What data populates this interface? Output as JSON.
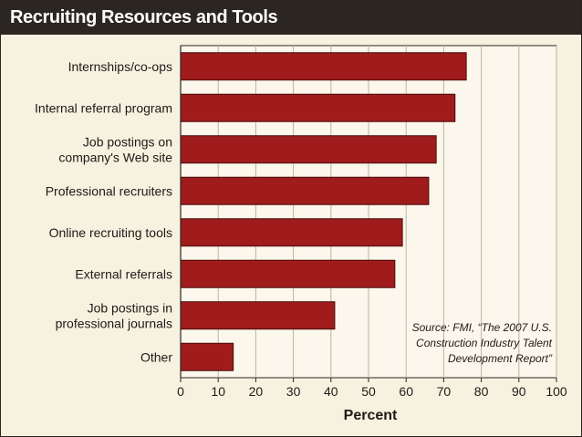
{
  "chart_data": {
    "type": "bar",
    "orientation": "horizontal",
    "title": "Recruiting Resources and Tools",
    "categories": [
      [
        "Internships/co-ops"
      ],
      [
        "Internal referral program"
      ],
      [
        "Job postings on",
        "company's Web site"
      ],
      [
        "Professional recruiters"
      ],
      [
        "Online recruiting tools"
      ],
      [
        "External referrals"
      ],
      [
        "Job postings in",
        "professional journals"
      ],
      [
        "Other"
      ]
    ],
    "values": [
      76,
      73,
      68,
      66,
      59,
      57,
      41,
      14
    ],
    "xlabel": "Percent",
    "ylabel": "",
    "xlim": [
      0,
      100
    ],
    "ticks": [
      "0",
      "10",
      "20",
      "30",
      "40",
      "50",
      "60",
      "70",
      "80",
      "90",
      "100"
    ],
    "grid": true,
    "bar_color": "#a01c1c",
    "bar_edge_color": "#4a0a0a",
    "annotation": [
      "Source: FMI, “The 2007 U.S.",
      "Construction Industry Talent",
      "Development Report”"
    ]
  }
}
